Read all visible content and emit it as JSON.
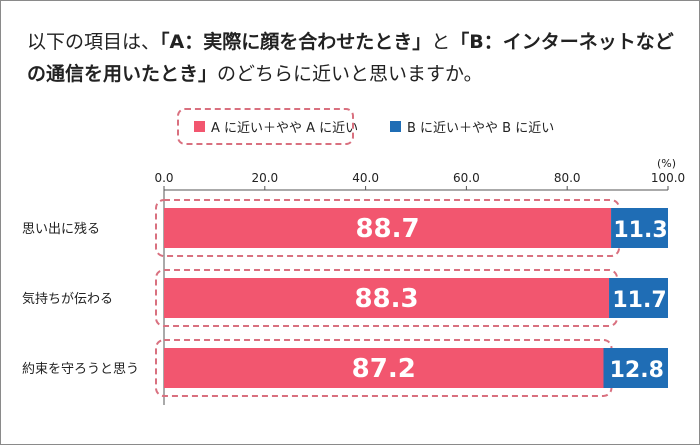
{
  "question": {
    "prefix": "以下の項目は、",
    "option_a": "「A：実際に顔を合わせたとき」",
    "mid": "と",
    "option_b": "「B：インターネットなどの通信を用いたとき」",
    "suffix": "のどちらに近いと思いますか。"
  },
  "colors": {
    "a": "#f2566f",
    "b": "#1f6db5",
    "highlight": "#d9707f"
  },
  "chart_data": {
    "type": "bar",
    "orientation": "horizontal",
    "stacked": true,
    "unit": "(%)",
    "xlim": [
      0,
      100
    ],
    "xticks": [
      "0.0",
      "20.0",
      "40.0",
      "60.0",
      "80.0",
      "100.0"
    ],
    "categories": [
      "思い出に残る",
      "気持ちが伝わる",
      "約束を守ろうと思う"
    ],
    "series": [
      {
        "name": "A に近い＋やや A に近い",
        "values": [
          88.7,
          88.3,
          87.2
        ],
        "labels": [
          "88.7",
          "88.3",
          "87.2"
        ]
      },
      {
        "name": "B に近い＋やや B に近い",
        "values": [
          11.3,
          11.7,
          12.8
        ],
        "labels": [
          "11.3",
          "11.7",
          "12.8"
        ]
      }
    ],
    "legend_position": "top"
  }
}
